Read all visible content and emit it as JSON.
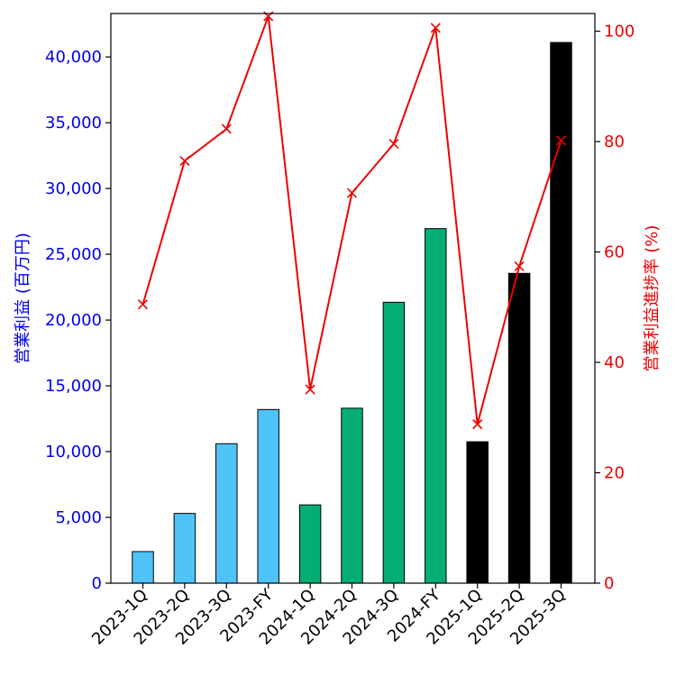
{
  "chart_data": {
    "type": "bar+line",
    "categories": [
      "2023-1Q",
      "2023-2Q",
      "2023-3Q",
      "2023-FY",
      "2024-1Q",
      "2024-2Q",
      "2024-3Q",
      "2024-FY",
      "2025-1Q",
      "2025-2Q",
      "2025-3Q"
    ],
    "bars": {
      "axis": "left",
      "values": [
        2400,
        5300,
        10600,
        13200,
        5950,
        13300,
        21350,
        26950,
        10750,
        23550,
        41100
      ],
      "colors": [
        "#4fc3f7",
        "#4fc3f7",
        "#4fc3f7",
        "#4fc3f7",
        "#04ad74",
        "#04ad74",
        "#04ad74",
        "#04ad74",
        "#000000",
        "#000000",
        "#000000"
      ]
    },
    "line": {
      "axis": "right",
      "values": [
        50.5,
        76.5,
        82.3,
        102.7,
        35.1,
        70.7,
        79.6,
        100.6,
        28.8,
        57.4,
        80.2
      ],
      "color": "#ee0000",
      "marker": "x"
    },
    "left_axis": {
      "label": "営業利益 (百万円)",
      "ylim": [
        0,
        43300
      ],
      "ticks": [
        0,
        5000,
        10000,
        15000,
        20000,
        25000,
        30000,
        35000,
        40000
      ],
      "tick_labels": [
        "0",
        "5,000",
        "10,000",
        "15,000",
        "20,000",
        "25,000",
        "30,000",
        "35,000",
        "40,000"
      ],
      "color": "#0000ee"
    },
    "right_axis": {
      "label": "営業利益進捗率 (%)",
      "ylim": [
        0,
        103.2
      ],
      "ticks": [
        0,
        20,
        40,
        60,
        80,
        100
      ],
      "tick_labels": [
        "0",
        "20",
        "40",
        "60",
        "80",
        "100"
      ],
      "color": "#ee0000"
    },
    "grid": false
  }
}
